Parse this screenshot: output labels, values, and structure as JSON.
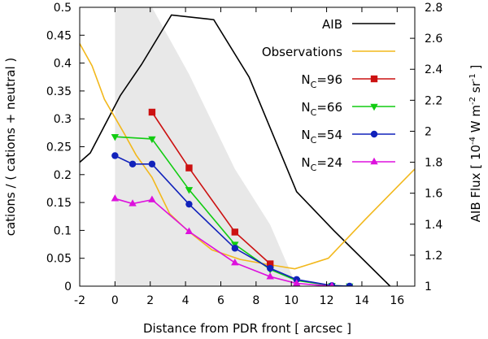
{
  "chart_data": {
    "type": "line",
    "xlabel": "Distance from PDR front  [ arcsec ]",
    "ylabel": "cations / ( cations + neutral )",
    "y2label_parts": {
      "prefix": "AIB Flux  [ 10",
      "exp1": "-4",
      "mid1": " W m",
      "exp2": "-2",
      "mid2": " sr",
      "exp3": "-1",
      "suffix": " ]"
    },
    "xlim": [
      -2,
      17
    ],
    "ylim": [
      0,
      0.5
    ],
    "y2lim": [
      1,
      2.8
    ],
    "xticks": [
      -2,
      0,
      2,
      4,
      6,
      8,
      10,
      12,
      14,
      16
    ],
    "yticks": [
      0,
      0.05,
      0.1,
      0.15,
      0.2,
      0.25,
      0.3,
      0.35,
      0.4,
      0.45,
      0.5
    ],
    "y2ticks": [
      1,
      1.2,
      1.4,
      1.6,
      1.8,
      2,
      2.2,
      2.4,
      2.6,
      2.8
    ],
    "shaded_band": {
      "x": [
        0,
        1.5,
        2.1,
        4.2,
        6.8,
        8.8,
        10.3
      ],
      "upper": [
        0.5,
        0.5,
        0.5,
        0.38,
        0.21,
        0.11,
        0.0
      ],
      "lower": [
        0.0,
        0.0,
        0.0,
        0.0,
        0.0,
        0.0,
        0.0
      ],
      "color": "#e8e8e8"
    },
    "legend_position": "top-right",
    "series": [
      {
        "name": "AIB",
        "axis": "y2",
        "color": "#000000",
        "marker": "none",
        "x": [
          -2,
          -1.4,
          0.3,
          1.5,
          3.2,
          5.6,
          7.6,
          10.3,
          12.4,
          15.6
        ],
        "y": [
          1.8,
          1.86,
          2.23,
          2.43,
          2.75,
          2.72,
          2.35,
          1.61,
          1.36,
          1.0
        ]
      },
      {
        "name": "Observations",
        "axis": "y1",
        "color": "#f2b81c",
        "marker": "none",
        "x": [
          -2,
          -1.3,
          -0.6,
          0.5,
          1.2,
          2.1,
          3.1,
          4.1,
          5.5,
          7.1,
          8.5,
          10.2,
          12.1,
          14.2,
          17
        ],
        "y": [
          0.435,
          0.395,
          0.335,
          0.275,
          0.235,
          0.195,
          0.13,
          0.1,
          0.065,
          0.048,
          0.04,
          0.031,
          0.05,
          0.12,
          0.21
        ]
      },
      {
        "name_main": "N",
        "name_sub": "C",
        "name_rest": "=96",
        "axis": "y1",
        "color": "#cc1111",
        "marker": "square",
        "x": [
          2.1,
          4.2,
          6.8,
          8.8
        ],
        "y": [
          0.312,
          0.212,
          0.097,
          0.04
        ]
      },
      {
        "name_main": "N",
        "name_sub": "C",
        "name_rest": "=66",
        "axis": "y1",
        "color": "#11cc11",
        "marker": "triangle-down",
        "x": [
          0,
          2.1,
          4.2,
          6.8,
          8.8,
          10.3,
          12.3,
          13.3
        ],
        "y": [
          0.268,
          0.264,
          0.173,
          0.075,
          0.03,
          0.01,
          0.001,
          0.0
        ]
      },
      {
        "name_main": "N",
        "name_sub": "C",
        "name_rest": "=54",
        "axis": "y1",
        "color": "#1122bb",
        "marker": "circle",
        "x": [
          0,
          1,
          2.1,
          4.2,
          6.8,
          8.8,
          10.3,
          12.3,
          13.3
        ],
        "y": [
          0.234,
          0.219,
          0.219,
          0.147,
          0.068,
          0.032,
          0.012,
          0.001,
          0.0
        ]
      },
      {
        "name_main": "N",
        "name_sub": "C",
        "name_rest": "=24",
        "axis": "y1",
        "color": "#dd11dd",
        "marker": "triangle-up",
        "x": [
          0,
          1,
          2.1,
          4.2,
          6.8,
          8.8,
          10.3,
          12.3
        ],
        "y": [
          0.157,
          0.148,
          0.155,
          0.098,
          0.042,
          0.017,
          0.005,
          0.0
        ]
      }
    ]
  }
}
